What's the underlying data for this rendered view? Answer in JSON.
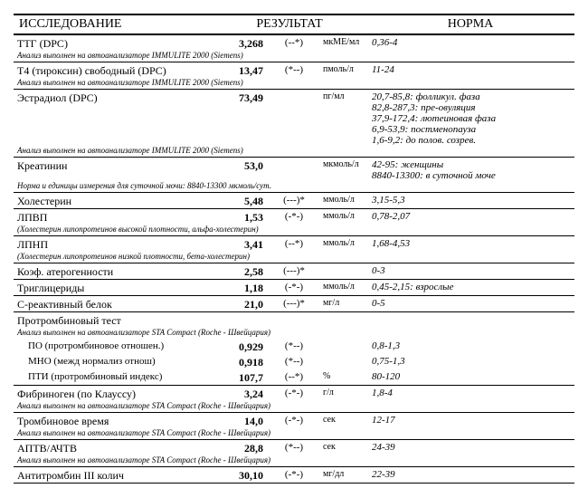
{
  "header": {
    "study": "ИССЛЕДОВАНИЕ",
    "result": "РЕЗУЛЬТАТ",
    "norm": "НОРМА"
  },
  "layout": {
    "grid_cols": "220px 60px 60px 50px 230px",
    "colors": {
      "text": "#000000",
      "bg": "#ffffff",
      "border": "#000000"
    },
    "font_family": "Times New Roman",
    "base_fontsize": 11,
    "header_fontsize": 14,
    "name_fontsize": 12,
    "note_fontsize": 9
  },
  "rows": [
    {
      "name": "ТТГ (DPC)",
      "value": "3,268",
      "flag": "(--*)",
      "unit": "мкМЕ/мл",
      "norm": "0,36-4",
      "note": "Анализ выполнен на автоанализаторе IMMULITE  2000   (Siemens)"
    },
    {
      "name": "Т4 (тироксин) свободный (DPC)",
      "value": "13,47",
      "flag": "(*--)",
      "unit": "пмоль/л",
      "norm": "11-24",
      "note": "Анализ выполнен на автоанализаторе IMMULITE  2000   (Siemens)"
    },
    {
      "name": "Эстрадиол (DPC)",
      "value": "73,49",
      "flag": "",
      "unit": "пг/мл",
      "norm": "20,7-85,8: фолликул. фаза\n82,8-287,3: пре-овуляция\n37,9-172,4: лютеиновая фаза\n6,9-53,9: постменопауза\n1,6-9,2: до полов. созрев.",
      "note": "Анализ выполнен на автоанализаторе IMMULITE  2000   (Siemens)"
    },
    {
      "name": "Креатинин",
      "value": "53,0",
      "flag": "",
      "unit": "мкмоль/л",
      "norm": "42-95: женщины\n8840-13300: в суточной моче",
      "note": "Норма и единицы измерения для суточной мочи:  8840-13300 мкмоль/сут."
    },
    {
      "name": "Холестерин",
      "value": "5,48",
      "flag": "(---)*",
      "unit": "ммоль/л",
      "norm": "3,15-5,3"
    },
    {
      "name": "ЛПВП",
      "value": "1,53",
      "flag": "(-*-)",
      "unit": "ммоль/л",
      "norm": "0,78-2,07",
      "note": "(Холестерин липопротеинов высокой плотности,   альфа-холестерин)"
    },
    {
      "name": "ЛПНП",
      "value": "3,41",
      "flag": "(--*)",
      "unit": "ммоль/л",
      "norm": "1,68-4,53",
      "note": "(Холестерин липопротеинов низкой плотности,   бета-холестерин)"
    },
    {
      "name": "Коэф. атерогенности",
      "value": "2,58",
      "flag": "(---)*",
      "unit": "",
      "norm": "0-3"
    },
    {
      "name": "Триглицериды",
      "value": "1,18",
      "flag": "(-*-)",
      "unit": "ммоль/л",
      "norm": "0,45-2,15: взрослые"
    },
    {
      "name": "С-реактивный белок",
      "value": "21,0",
      "flag": "(---)*",
      "unit": "мг/л",
      "norm": "0-5"
    },
    {
      "name": "Протромбиновый тест",
      "value": "",
      "flag": "",
      "unit": "",
      "norm": "",
      "note": "Анализ выполнен на автоанализаторе STA  Compact  (Roche  -  Швейцария)",
      "no_border": true
    },
    {
      "sub": true,
      "name": "ПО (протромбиновое отношен.)",
      "value": "0,929",
      "flag": "(*--)",
      "unit": "",
      "norm": "0,8-1,3",
      "no_border": true
    },
    {
      "sub": true,
      "name": "МНО (межд нормализ отнош)",
      "value": "0,918",
      "flag": "(*--)",
      "unit": "",
      "norm": "0,75-1,3",
      "no_border": true
    },
    {
      "sub": true,
      "name": "ПТИ (протромбиновый индекс)",
      "value": "107,7",
      "flag": "(--*)",
      "unit": "%",
      "norm": "80-120"
    },
    {
      "name": "Фибриноген (по Клауссу)",
      "value": "3,24",
      "flag": "(-*-)",
      "unit": "г/л",
      "norm": "1,8-4",
      "note": "Анализ выполнен на автоанализаторе STA  Compact  (Roche  -  Швейцария)"
    },
    {
      "name": "Тромбиновое время",
      "value": "14,0",
      "flag": "(-*-)",
      "unit": "сек",
      "norm": "12-17",
      "note": "Анализ выполнен на автоанализаторе STA  Compact  (Roche  -  Швейцария)"
    },
    {
      "name": "АПТВ/АЧТВ",
      "value": "28,8",
      "flag": "(*--)",
      "unit": "сек",
      "norm": "24-39",
      "note": "Анализ выполнен на автоанализаторе STA  Compact  (Roche  -  Швейцария)"
    },
    {
      "name": "Антитромбин III колич",
      "value": "30,10",
      "flag": "(-*-)",
      "unit": "мг/дл",
      "norm": "22-39"
    }
  ]
}
